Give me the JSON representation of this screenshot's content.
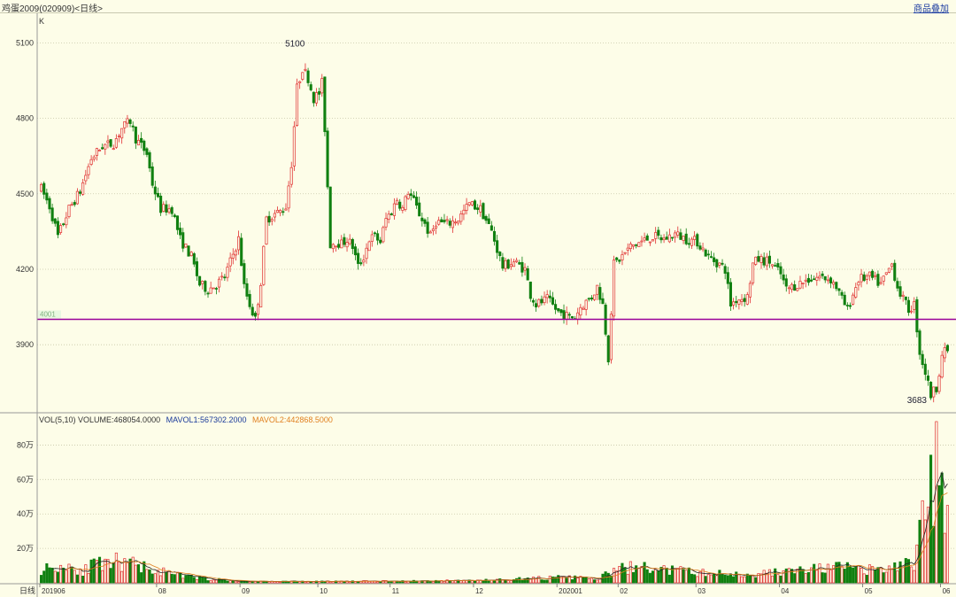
{
  "header": {
    "title": "鸡蛋2009(020909)<日线>",
    "overlay_button": "商品叠加"
  },
  "price_panel": {
    "label": "K",
    "y_ticks": [
      5100,
      4800,
      4500,
      4200,
      3900
    ],
    "ylim": [
      3640,
      5200
    ],
    "ref_line": {
      "value": 4001,
      "label": "4001",
      "color": "#990099"
    },
    "max_label": "5100",
    "min_label": "3683"
  },
  "volume_panel": {
    "legend_prefix": "VOL(5,10) VOLUME:468054.0000",
    "mavol1_label": "MAVOL1:567302.2000",
    "mavol2_label": "MAVOL2:442868.5000",
    "y_ticks": [
      "80万",
      "60万",
      "40万",
      "20万"
    ],
    "y_tick_values": [
      80,
      60,
      40,
      20
    ],
    "ymax": 90
  },
  "x_axis": {
    "prefix": "日线",
    "labels": [
      {
        "text": "201906",
        "i": 0
      },
      {
        "text": "08",
        "i": 42
      },
      {
        "text": "09",
        "i": 72
      },
      {
        "text": "10",
        "i": 100
      },
      {
        "text": "11",
        "i": 126
      },
      {
        "text": "12",
        "i": 156
      },
      {
        "text": "202001",
        "i": 186
      },
      {
        "text": "02",
        "i": 208
      },
      {
        "text": "03",
        "i": 236
      },
      {
        "text": "04",
        "i": 266
      },
      {
        "text": "05",
        "i": 296
      },
      {
        "text": "06",
        "i": 324
      }
    ]
  },
  "chart_data": {
    "type": "candlestick",
    "up_color": "#e03030",
    "down_color": "#108010",
    "anchors": [
      [
        0,
        4520
      ],
      [
        3,
        4450
      ],
      [
        6,
        4330
      ],
      [
        10,
        4440
      ],
      [
        14,
        4510
      ],
      [
        18,
        4640
      ],
      [
        22,
        4690
      ],
      [
        26,
        4700
      ],
      [
        29,
        4760
      ],
      [
        32,
        4790
      ],
      [
        34,
        4720
      ],
      [
        38,
        4660
      ],
      [
        40,
        4540
      ],
      [
        43,
        4440
      ],
      [
        47,
        4440
      ],
      [
        50,
        4320
      ],
      [
        54,
        4250
      ],
      [
        57,
        4140
      ],
      [
        60,
        4120
      ],
      [
        63,
        4140
      ],
      [
        66,
        4170
      ],
      [
        69,
        4260
      ],
      [
        71,
        4320
      ],
      [
        73,
        4130
      ],
      [
        75,
        4060
      ],
      [
        77,
        4000
      ],
      [
        79,
        4150
      ],
      [
        81,
        4400
      ],
      [
        84,
        4420
      ],
      [
        86,
        4430
      ],
      [
        88,
        4450
      ],
      [
        90,
        4620
      ],
      [
        92,
        4920
      ],
      [
        94,
        5000
      ],
      [
        96,
        4960
      ],
      [
        98,
        4880
      ],
      [
        100,
        4900
      ],
      [
        101,
        4940
      ],
      [
        102,
        4760
      ],
      [
        104,
        4300
      ],
      [
        106,
        4310
      ],
      [
        108,
        4300
      ],
      [
        110,
        4320
      ],
      [
        112,
        4290
      ],
      [
        114,
        4210
      ],
      [
        116,
        4250
      ],
      [
        118,
        4320
      ],
      [
        120,
        4330
      ],
      [
        122,
        4310
      ],
      [
        124,
        4400
      ],
      [
        126,
        4430
      ],
      [
        128,
        4480
      ],
      [
        130,
        4440
      ],
      [
        132,
        4510
      ],
      [
        134,
        4470
      ],
      [
        136,
        4420
      ],
      [
        138,
        4380
      ],
      [
        140,
        4330
      ],
      [
        142,
        4390
      ],
      [
        146,
        4380
      ],
      [
        150,
        4400
      ],
      [
        154,
        4460
      ],
      [
        158,
        4440
      ],
      [
        162,
        4350
      ],
      [
        166,
        4210
      ],
      [
        170,
        4230
      ],
      [
        174,
        4200
      ],
      [
        176,
        4100
      ],
      [
        178,
        4060
      ],
      [
        182,
        4080
      ],
      [
        186,
        4030
      ],
      [
        190,
        4010
      ],
      [
        192,
        4010
      ],
      [
        194,
        4050
      ],
      [
        198,
        4090
      ],
      [
        200,
        4130
      ],
      [
        202,
        4060
      ],
      [
        204,
        3850
      ],
      [
        206,
        4220
      ],
      [
        208,
        4240
      ],
      [
        212,
        4290
      ],
      [
        216,
        4310
      ],
      [
        220,
        4330
      ],
      [
        224,
        4320
      ],
      [
        228,
        4340
      ],
      [
        232,
        4320
      ],
      [
        236,
        4310
      ],
      [
        240,
        4250
      ],
      [
        244,
        4220
      ],
      [
        246,
        4200
      ],
      [
        248,
        4060
      ],
      [
        250,
        4080
      ],
      [
        254,
        4090
      ],
      [
        256,
        4220
      ],
      [
        258,
        4240
      ],
      [
        262,
        4230
      ],
      [
        266,
        4180
      ],
      [
        268,
        4120
      ],
      [
        270,
        4130
      ],
      [
        272,
        4140
      ],
      [
        276,
        4160
      ],
      [
        280,
        4170
      ],
      [
        284,
        4160
      ],
      [
        286,
        4130
      ],
      [
        288,
        4080
      ],
      [
        290,
        4040
      ],
      [
        292,
        4100
      ],
      [
        294,
        4160
      ],
      [
        298,
        4170
      ],
      [
        302,
        4140
      ],
      [
        306,
        4220
      ],
      [
        308,
        4130
      ],
      [
        310,
        4080
      ],
      [
        312,
        4040
      ],
      [
        314,
        4060
      ],
      [
        316,
        3870
      ],
      [
        318,
        3790
      ],
      [
        320,
        3700
      ],
      [
        322,
        3730
      ],
      [
        324,
        3860
      ],
      [
        326,
        3880
      ]
    ],
    "candle_count": 327,
    "volume_note": "values in 万",
    "volume_anchors": [
      [
        0,
        8
      ],
      [
        5,
        9
      ],
      [
        10,
        10
      ],
      [
        15,
        7
      ],
      [
        20,
        11
      ],
      [
        25,
        9
      ],
      [
        28,
        14
      ],
      [
        30,
        10
      ],
      [
        34,
        11
      ],
      [
        38,
        9
      ],
      [
        40,
        8
      ],
      [
        44,
        6
      ],
      [
        50,
        4
      ],
      [
        56,
        3
      ],
      [
        62,
        2
      ],
      [
        70,
        1
      ],
      [
        80,
        0.8
      ],
      [
        100,
        0.8
      ],
      [
        130,
        1
      ],
      [
        160,
        1.5
      ],
      [
        176,
        2.5
      ],
      [
        186,
        3
      ],
      [
        194,
        3
      ],
      [
        200,
        2
      ],
      [
        206,
        7
      ],
      [
        212,
        9
      ],
      [
        220,
        8
      ],
      [
        228,
        7
      ],
      [
        236,
        6
      ],
      [
        246,
        5
      ],
      [
        256,
        5
      ],
      [
        264,
        6
      ],
      [
        272,
        7
      ],
      [
        280,
        8
      ],
      [
        288,
        9
      ],
      [
        296,
        7
      ],
      [
        304,
        8
      ],
      [
        310,
        10
      ],
      [
        314,
        12
      ],
      [
        316,
        30
      ],
      [
        318,
        42
      ],
      [
        320,
        52
      ],
      [
        321,
        48
      ],
      [
        322,
        86
      ],
      [
        323,
        40
      ],
      [
        324,
        52
      ],
      [
        326,
        47
      ]
    ]
  }
}
